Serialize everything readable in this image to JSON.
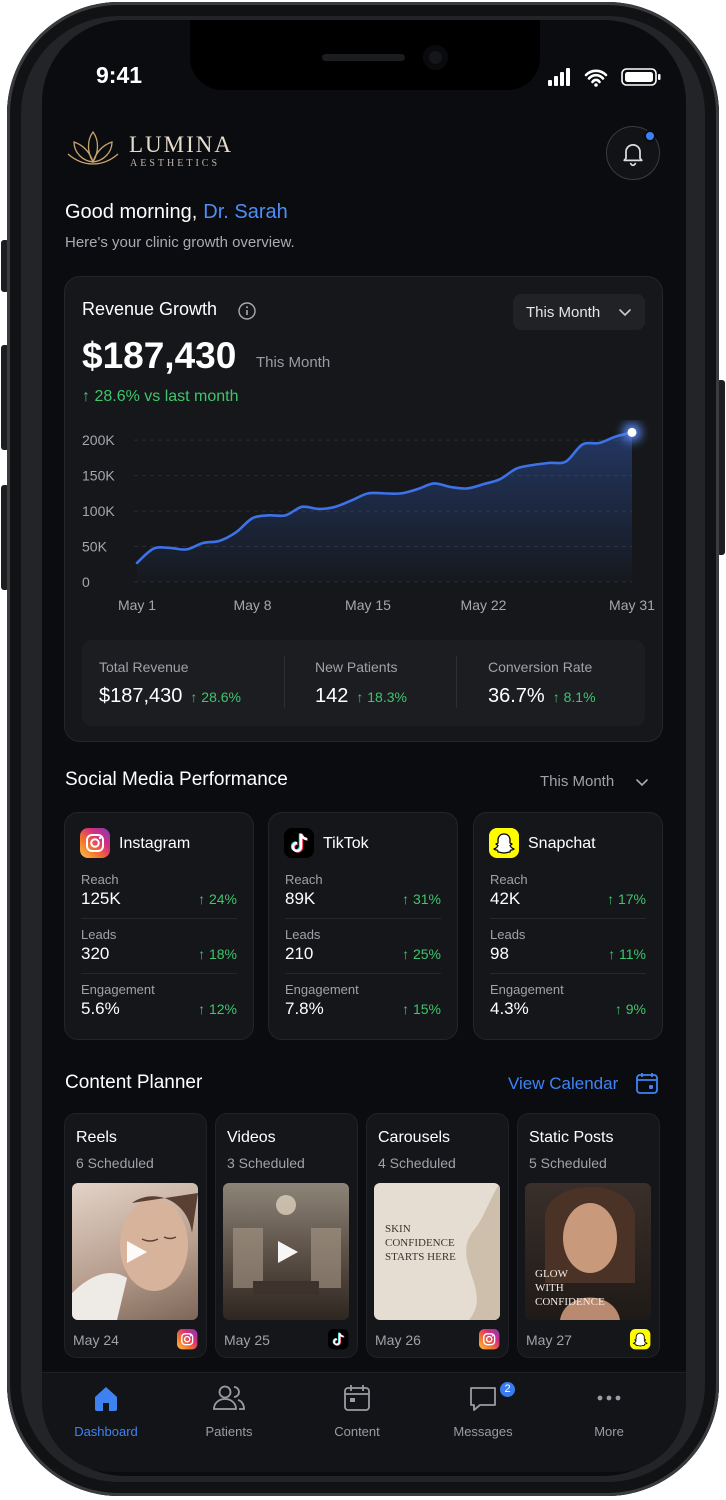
{
  "status_bar": {
    "time": "9:41"
  },
  "header": {
    "brand": "LUMINA",
    "tagline": "AESTHETICS"
  },
  "greeting": {
    "text": "Good morning,",
    "name": "Dr. Sarah",
    "subtitle": "Here's your clinic growth overview."
  },
  "revenue": {
    "title": "Revenue Growth",
    "period_selector": "This Month",
    "amount": "$187,430",
    "amount_period": "This Month",
    "change": "↑ 28.6% vs last month",
    "stats": [
      {
        "label": "Total Revenue",
        "value": "$187,430",
        "change": "↑ 28.6%"
      },
      {
        "label": "New Patients",
        "value": "142",
        "change": "↑ 18.3%"
      },
      {
        "label": "Conversion Rate",
        "value": "36.7%",
        "change": "↑ 8.1%"
      }
    ]
  },
  "chart_data": {
    "type": "area",
    "categories": [
      "May 1",
      null,
      null,
      null,
      null,
      null,
      null,
      "May 8",
      null,
      null,
      null,
      null,
      null,
      null,
      "May 15",
      null,
      null,
      null,
      null,
      null,
      null,
      "May 22",
      null,
      null,
      null,
      null,
      null,
      null,
      null,
      null,
      "May 31"
    ],
    "values": [
      27000,
      47000,
      48000,
      46000,
      55000,
      58000,
      70000,
      90000,
      94000,
      94000,
      106000,
      103000,
      106000,
      115000,
      125000,
      125000,
      125000,
      131000,
      139000,
      134000,
      132000,
      138000,
      145000,
      160000,
      165000,
      168000,
      170000,
      194000,
      196000,
      205000,
      211000
    ],
    "color": "#3d72e8",
    "ylim": [
      0,
      220000
    ],
    "yticks": [
      0,
      {
        "value": 50000,
        "label": "50K"
      },
      {
        "value": 100000,
        "label": "100K"
      },
      {
        "value": 150000,
        "label": "150K"
      },
      {
        "value": 200000,
        "label": "200K"
      }
    ],
    "grid": true
  },
  "social": {
    "title": "Social Media Performance",
    "period_selector": "This Month",
    "platforms": [
      {
        "name": "Instagram",
        "metrics": [
          {
            "label": "Reach",
            "value": "125K",
            "change": "↑ 24%"
          },
          {
            "label": "Leads",
            "value": "320",
            "change": "↑ 18%"
          },
          {
            "label": "Engagement",
            "value": "5.6%",
            "change": "↑ 12%"
          }
        ]
      },
      {
        "name": "TikTok",
        "metrics": [
          {
            "label": "Reach",
            "value": "89K",
            "change": "↑ 31%"
          },
          {
            "label": "Leads",
            "value": "210",
            "change": "↑ 25%"
          },
          {
            "label": "Engagement",
            "value": "7.8%",
            "change": "↑ 15%"
          }
        ]
      },
      {
        "name": "Snapchat",
        "metrics": [
          {
            "label": "Reach",
            "value": "42K",
            "change": "↑ 17%"
          },
          {
            "label": "Leads",
            "value": "98",
            "change": "↑ 11%"
          },
          {
            "label": "Engagement",
            "value": "4.3%",
            "change": "↑ 9%"
          }
        ]
      }
    ]
  },
  "planner": {
    "title": "Content Planner",
    "action": "View Calendar",
    "items": [
      {
        "title": "Reels",
        "count": "6 Scheduled",
        "date": "May 24"
      },
      {
        "title": "Videos",
        "count": "3 Scheduled",
        "date": "May 25"
      },
      {
        "title": "Carousels",
        "count": "4 Scheduled",
        "date": "May 26",
        "image_text": [
          "SKIN",
          "CONFIDENCE",
          "STARTS HERE"
        ]
      },
      {
        "title": "Static Posts",
        "count": "5 Scheduled",
        "date": "May 27",
        "image_text": [
          "GLOW",
          "WITH",
          "CONFIDENCE"
        ]
      }
    ]
  },
  "nav": {
    "items": [
      {
        "label": "Dashboard"
      },
      {
        "label": "Patients"
      },
      {
        "label": "Content"
      },
      {
        "label": "Messages",
        "badge": "2"
      },
      {
        "label": "More"
      }
    ]
  }
}
